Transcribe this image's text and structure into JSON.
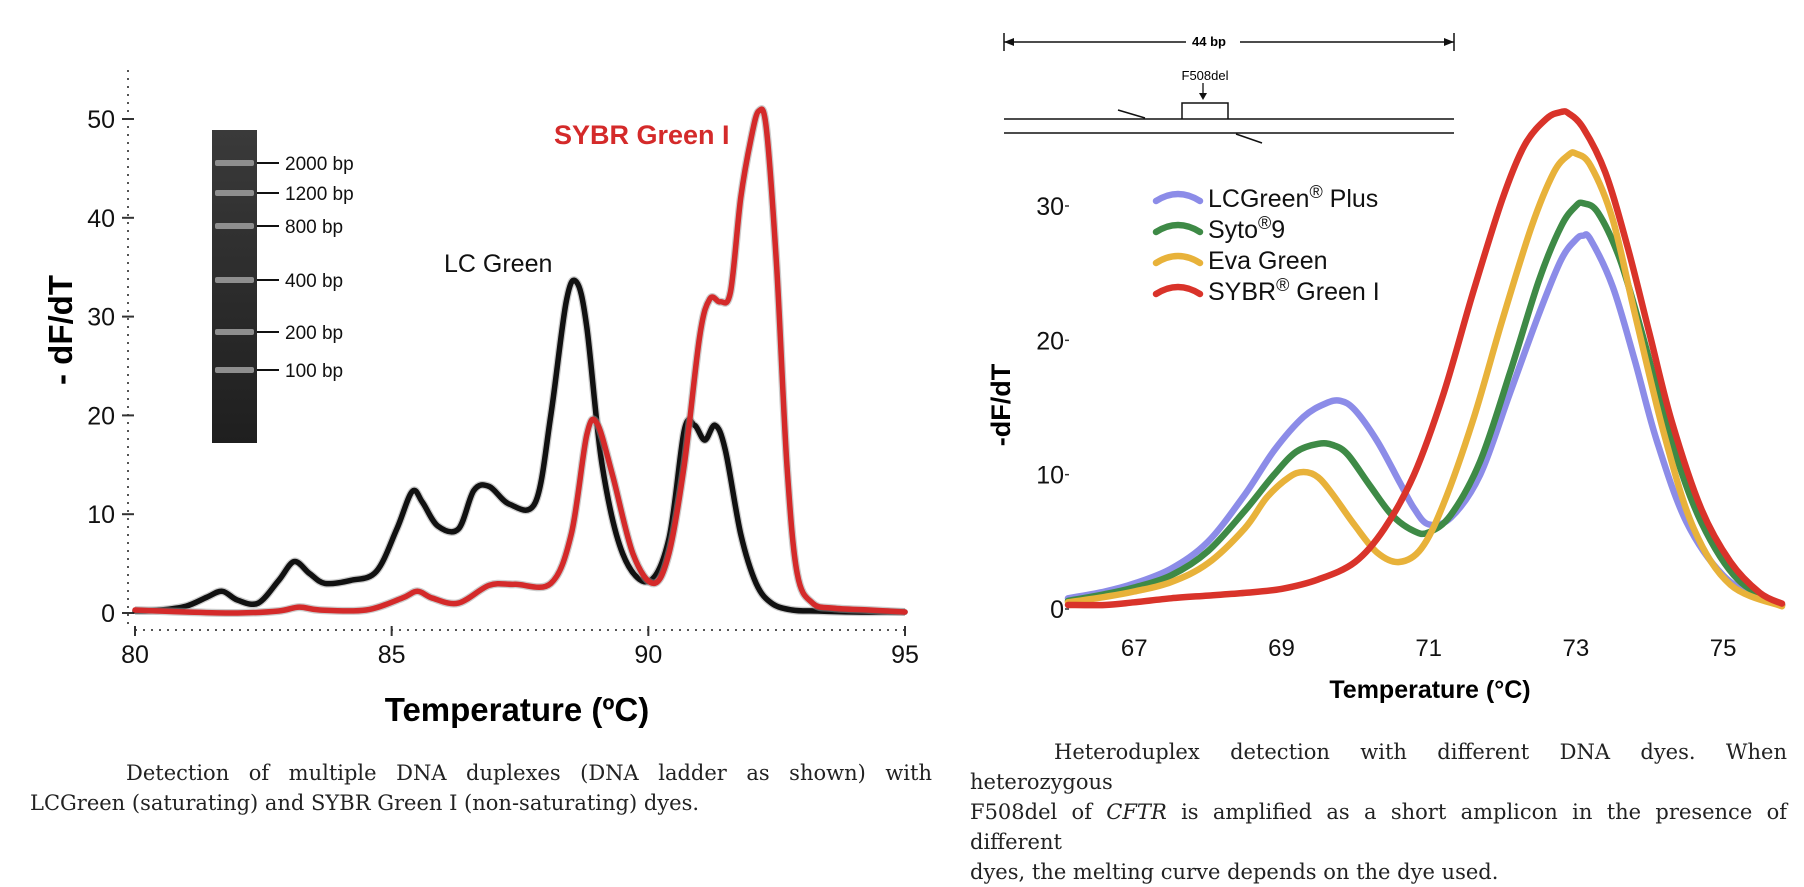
{
  "left_chart_caption": {
    "line1": "Detection of multiple DNA duplexes (DNA ladder as shown) with",
    "line2": "LCGreen (saturating) and SYBR Green I (non-saturating) dyes."
  },
  "right_chart_caption": {
    "line1": "Heteroduplex detection with different DNA dyes. When heterozygous",
    "line2_pre": "F508del of ",
    "line2_em": "CFTR",
    "line2_post": " is amplified as a short amplicon in the presence of different",
    "line3": "dyes, the melting curve depends on the dye used."
  },
  "gel_ladder": {
    "labels": [
      "2000 bp",
      "1200 bp",
      "800 bp",
      "400 bp",
      "200 bp",
      "100 bp"
    ]
  },
  "amplicon_diagram": {
    "length_label": "44 bp",
    "mutation_label": "F508del"
  },
  "chart_data": [
    {
      "type": "line",
      "title": "",
      "xlabel": "Temperature (ºC)",
      "ylabel": "- dF/dT",
      "xlim": [
        80,
        95
      ],
      "ylim": [
        0,
        55
      ],
      "xticks": [
        80,
        85,
        90,
        95
      ],
      "yticks": [
        0,
        10,
        20,
        30,
        40,
        50
      ],
      "grid": false,
      "annotations": [
        "LC Green",
        "SYBR Green I"
      ],
      "series": [
        {
          "name": "LC Green",
          "color": "#111111",
          "x": [
            80,
            80.5,
            81,
            81.4,
            81.7,
            82.0,
            82.4,
            82.8,
            83.1,
            83.4,
            83.7,
            84.2,
            84.7,
            85.1,
            85.4,
            85.6,
            85.9,
            86.3,
            86.6,
            86.9,
            87.3,
            87.8,
            88.1,
            88.4,
            88.6,
            88.8,
            89.1,
            89.5,
            90.0,
            90.4,
            90.7,
            90.9,
            91.1,
            91.3,
            91.5,
            91.8,
            92.1,
            92.4,
            92.8,
            93.3,
            94,
            95
          ],
          "y": [
            0.2,
            0.3,
            0.7,
            1.6,
            2.2,
            1.3,
            1.0,
            3.3,
            5.2,
            4.0,
            3.0,
            3.3,
            4.2,
            8.5,
            12.3,
            11.2,
            8.8,
            8.5,
            12.4,
            12.8,
            11.0,
            11.2,
            20.0,
            31.5,
            33.5,
            29.0,
            15.0,
            6.0,
            3.2,
            7.5,
            18.5,
            19.0,
            17.5,
            19.0,
            16.5,
            8.0,
            3.0,
            1.0,
            0.3,
            0.2,
            0.1,
            0.1
          ]
        },
        {
          "name": "SYBR Green I",
          "color": "#d42a2a",
          "x": [
            80,
            81,
            82,
            82.8,
            83.2,
            83.6,
            84.5,
            85.2,
            85.5,
            85.8,
            86.3,
            86.9,
            87.4,
            88.1,
            88.5,
            88.8,
            89.0,
            89.3,
            89.7,
            90.1,
            90.4,
            90.7,
            91.0,
            91.2,
            91.4,
            91.6,
            91.8,
            92.0,
            92.15,
            92.3,
            92.5,
            92.7,
            92.9,
            93.2,
            93.6,
            94.3,
            95
          ],
          "y": [
            0.3,
            0.1,
            0.0,
            0.2,
            0.6,
            0.3,
            0.3,
            1.5,
            2.2,
            1.5,
            1.0,
            2.8,
            2.9,
            3.0,
            8.0,
            18.0,
            19.2,
            14.0,
            6.0,
            3.0,
            6.0,
            15.0,
            28.0,
            31.8,
            31.5,
            32.5,
            42.0,
            48.0,
            50.8,
            49.0,
            35.0,
            15.0,
            4.0,
            1.0,
            0.5,
            0.3,
            0.1
          ]
        }
      ]
    },
    {
      "type": "line",
      "title": "",
      "xlabel": "Temperature (°C)",
      "ylabel": "-dF/dT",
      "xlim": [
        66.1,
        75.8
      ],
      "ylim": [
        0,
        37
      ],
      "xticks": [
        67,
        69,
        71,
        73,
        75
      ],
      "yticks": [
        0,
        10,
        20,
        30
      ],
      "grid": false,
      "legend": "top-left",
      "series": [
        {
          "name": "LCGreen® Plus",
          "color": "#8c8ce8",
          "x": [
            66.1,
            66.6,
            67.0,
            67.5,
            68.0,
            68.5,
            68.9,
            69.3,
            69.6,
            69.8,
            70.0,
            70.3,
            70.6,
            70.8,
            71.0,
            71.3,
            71.7,
            72.1,
            72.5,
            72.8,
            73.0,
            73.1,
            73.2,
            73.5,
            73.8,
            74.1,
            74.5,
            75.0,
            75.5,
            75.8
          ],
          "y": [
            0.8,
            1.3,
            1.9,
            3.0,
            5.0,
            8.5,
            11.8,
            14.3,
            15.3,
            15.5,
            14.8,
            12.5,
            9.5,
            7.5,
            6.3,
            6.8,
            10.0,
            16.0,
            22.0,
            26.0,
            27.5,
            27.8,
            27.5,
            24.0,
            18.5,
            12.5,
            6.5,
            2.5,
            0.8,
            0.3
          ]
        },
        {
          "name": "Syto®9",
          "color": "#3e8a46",
          "x": [
            66.1,
            66.6,
            67.0,
            67.5,
            68.0,
            68.5,
            68.9,
            69.2,
            69.5,
            69.7,
            69.9,
            70.2,
            70.5,
            70.8,
            71.0,
            71.3,
            71.7,
            72.1,
            72.5,
            72.8,
            73.0,
            73.1,
            73.3,
            73.6,
            73.9,
            74.3,
            74.7,
            75.2,
            75.8
          ],
          "y": [
            0.6,
            1.1,
            1.6,
            2.5,
            4.3,
            7.3,
            10.0,
            11.7,
            12.3,
            12.2,
            11.5,
            9.2,
            7.0,
            5.8,
            5.7,
            7.0,
            11.0,
            17.5,
            24.5,
            28.5,
            30.0,
            30.2,
            29.5,
            26.0,
            20.5,
            12.5,
            6.5,
            2.2,
            0.3
          ]
        },
        {
          "name": "Eva Green",
          "color": "#e8b23a",
          "x": [
            66.1,
            66.6,
            67.0,
            67.5,
            68.0,
            68.5,
            68.8,
            69.1,
            69.3,
            69.5,
            69.7,
            70.0,
            70.3,
            70.6,
            70.9,
            71.2,
            71.6,
            72.0,
            72.4,
            72.7,
            72.9,
            73.0,
            73.2,
            73.5,
            73.8,
            74.2,
            74.6,
            75.1,
            75.8
          ],
          "y": [
            0.5,
            0.9,
            1.3,
            2.0,
            3.4,
            6.0,
            8.3,
            9.8,
            10.2,
            9.8,
            8.5,
            6.2,
            4.2,
            3.5,
            4.5,
            7.8,
            14.0,
            21.5,
            28.5,
            32.5,
            33.8,
            33.9,
            33.0,
            29.0,
            22.0,
            13.0,
            6.0,
            1.8,
            0.2
          ]
        },
        {
          "name": "SYBR® Green I",
          "color": "#d9332a",
          "x": [
            66.1,
            66.6,
            67.0,
            67.5,
            68.0,
            68.5,
            69.0,
            69.5,
            70.0,
            70.4,
            70.8,
            71.2,
            71.6,
            72.0,
            72.3,
            72.6,
            72.8,
            72.9,
            73.1,
            73.4,
            73.7,
            74.0,
            74.3,
            74.7,
            75.1,
            75.5,
            75.8
          ],
          "y": [
            0.3,
            0.3,
            0.5,
            0.8,
            1.0,
            1.2,
            1.5,
            2.2,
            3.5,
            6.0,
            10.0,
            16.0,
            23.5,
            30.5,
            34.5,
            36.5,
            37.0,
            36.9,
            35.8,
            32.5,
            27.0,
            20.5,
            14.0,
            7.5,
            3.5,
            1.2,
            0.4
          ]
        }
      ]
    }
  ]
}
